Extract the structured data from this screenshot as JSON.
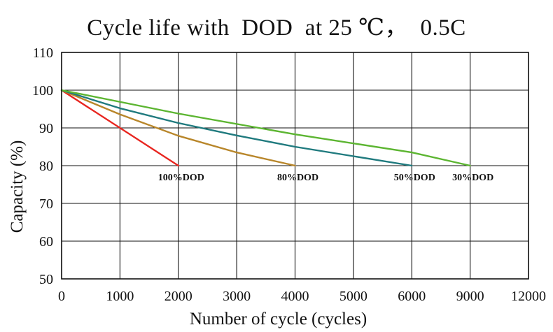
{
  "chart_data": {
    "type": "line",
    "title": "Cycle life with  DOD  at 25 ℃，  0.5C",
    "xlabel": "Number of cycle (cycles)",
    "ylabel": "Capacity (%)",
    "ylim": [
      50,
      110
    ],
    "y_ticks": [
      "50",
      "60",
      "70",
      "80",
      "90",
      "100",
      "110"
    ],
    "x_ticks": [
      "0",
      "1000",
      "2000",
      "3000",
      "4000",
      "5000",
      "6000",
      "9000",
      "12000"
    ],
    "x_tick_values": [
      0,
      1000,
      2000,
      3000,
      4000,
      5000,
      6000,
      9000,
      12000
    ],
    "grid": true,
    "series": [
      {
        "name": "100%DOD",
        "color": "#e8251f",
        "points": [
          [
            0,
            100
          ],
          [
            2000,
            80
          ]
        ]
      },
      {
        "name": "80%DOD",
        "color": "#b8862a",
        "points": [
          [
            0,
            100
          ],
          [
            1000,
            93.6
          ],
          [
            2000,
            87.9
          ],
          [
            3000,
            83.5
          ],
          [
            4000,
            80
          ]
        ]
      },
      {
        "name": "50%DOD",
        "color": "#1f7a7e",
        "points": [
          [
            0,
            100
          ],
          [
            1000,
            95.2
          ],
          [
            2000,
            91.3
          ],
          [
            3000,
            88
          ],
          [
            4000,
            85
          ],
          [
            5000,
            82.5
          ],
          [
            6000,
            80
          ]
        ]
      },
      {
        "name": "30%DOD",
        "color": "#5cb531",
        "points": [
          [
            0,
            100
          ],
          [
            2000,
            93.8
          ],
          [
            4000,
            88.3
          ],
          [
            6000,
            83.5
          ],
          [
            9000,
            80
          ]
        ]
      }
    ]
  }
}
